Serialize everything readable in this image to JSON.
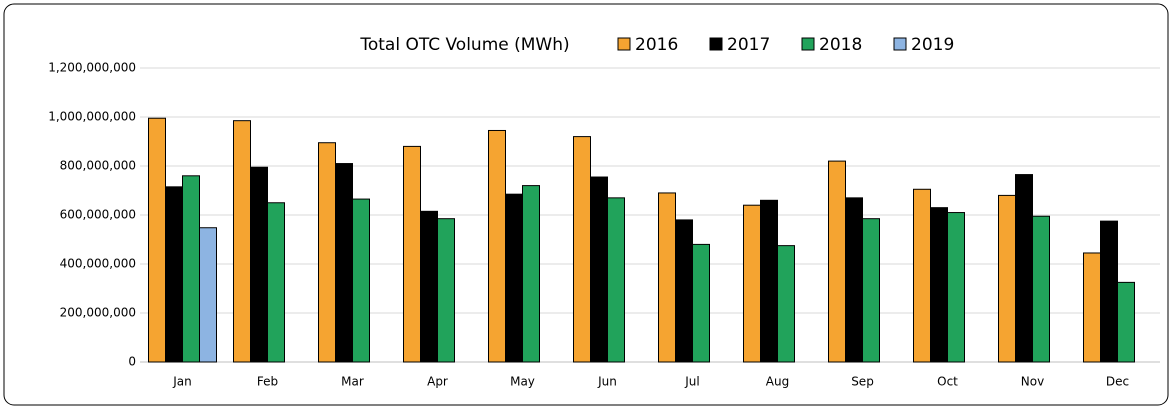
{
  "chart_data": {
    "type": "bar",
    "title": "Total OTC Volume (MWh)",
    "categories": [
      "Jan",
      "Feb",
      "Mar",
      "Apr",
      "May",
      "Jun",
      "Jul",
      "Aug",
      "Sep",
      "Oct",
      "Nov",
      "Dec"
    ],
    "series": [
      {
        "name": "2016",
        "color": "#f5a431",
        "values": [
          995000000,
          985000000,
          895000000,
          880000000,
          945000000,
          920000000,
          690000000,
          640000000,
          820000000,
          705000000,
          680000000,
          445000000
        ]
      },
      {
        "name": "2017",
        "color": "#000000",
        "values": [
          715000000,
          795000000,
          810000000,
          615000000,
          685000000,
          755000000,
          580000000,
          660000000,
          670000000,
          630000000,
          765000000,
          575000000
        ]
      },
      {
        "name": "2018",
        "color": "#21a35b",
        "values": [
          760000000,
          650000000,
          665000000,
          585000000,
          720000000,
          670000000,
          480000000,
          475000000,
          585000000,
          610000000,
          595000000,
          325000000
        ]
      },
      {
        "name": "2019",
        "color": "#8db4e2",
        "values": [
          548000000,
          null,
          null,
          null,
          null,
          null,
          null,
          null,
          null,
          null,
          null,
          null
        ]
      }
    ],
    "ylim": [
      0,
      1200000000
    ],
    "yticks": [
      0,
      {
        "value": 200000000,
        "label": "200,000,000"
      },
      {
        "value": 400000000,
        "label": "400,000,000"
      },
      {
        "value": 600000000,
        "label": "600,000,000"
      },
      {
        "value": 800000000,
        "label": "800,000,000"
      },
      {
        "value": 1000000000,
        "label": "1,000,000,000"
      },
      {
        "value": 1200000000,
        "label": "1,200,000,000"
      }
    ],
    "grid": true,
    "legend": "top"
  }
}
